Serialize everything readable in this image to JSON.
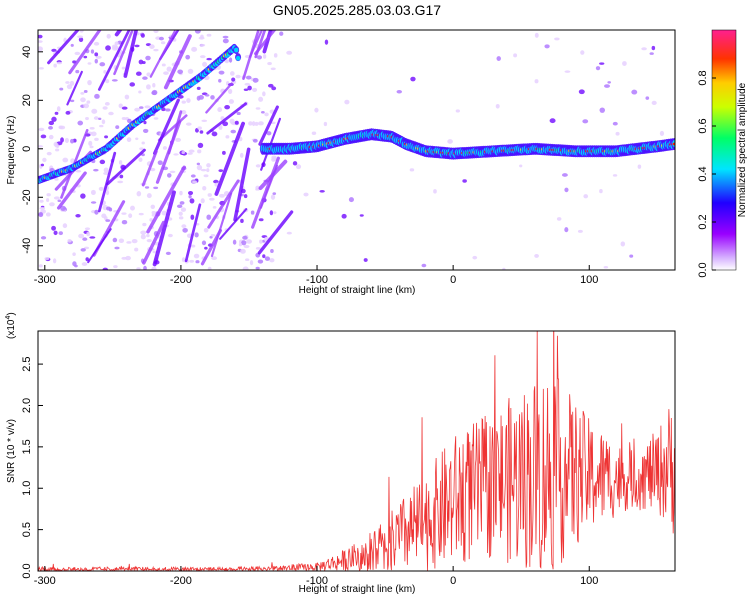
{
  "title": "GN05.2025.285.03.03.G17",
  "chart_data": [
    {
      "type": "heatmap",
      "title": "GN05.2025.285.03.03.G17",
      "xlabel": "Height of straight line (km)",
      "ylabel": "Frequency (Hz)",
      "xlim": [
        -305,
        163
      ],
      "ylim": [
        -50,
        49
      ],
      "xticks": [
        -300,
        -200,
        -100,
        0,
        100
      ],
      "yticks": [
        -40,
        -20,
        0,
        20,
        40
      ],
      "colorbar": {
        "label": "Normalized spectral amplitude",
        "range": [
          0,
          1
        ],
        "ticks": [
          "0.0",
          "0.2",
          "0.4",
          "0.6",
          "0.8"
        ],
        "colors": [
          "#ffffff",
          "#a000ff",
          "#3000ff",
          "#00ffff",
          "#00ff00",
          "#ffff00",
          "#ff0000",
          "#ff1f8f"
        ]
      },
      "ridge_points": [
        {
          "x": -305,
          "y": -13
        },
        {
          "x": -280,
          "y": -8
        },
        {
          "x": -255,
          "y": 0
        },
        {
          "x": -235,
          "y": 10
        },
        {
          "x": -210,
          "y": 20
        },
        {
          "x": -185,
          "y": 30
        },
        {
          "x": -160,
          "y": 42
        },
        {
          "x": -140,
          "y": 0
        },
        {
          "x": -120,
          "y": 0
        },
        {
          "x": -100,
          "y": 1
        },
        {
          "x": -80,
          "y": 4
        },
        {
          "x": -60,
          "y": 6
        },
        {
          "x": -45,
          "y": 5
        },
        {
          "x": -35,
          "y": 2
        },
        {
          "x": -20,
          "y": -1
        },
        {
          "x": 0,
          "y": -2
        },
        {
          "x": 30,
          "y": -1
        },
        {
          "x": 60,
          "y": 0
        },
        {
          "x": 90,
          "y": -1
        },
        {
          "x": 120,
          "y": -1
        },
        {
          "x": 150,
          "y": 1
        },
        {
          "x": 163,
          "y": 2
        }
      ]
    },
    {
      "type": "line",
      "xlabel": "Height of straight line (km)",
      "ylabel": "SNR (10 * v/v)",
      "scale_label": "(x10",
      "scale_exponent": "4",
      "scale_close": ")",
      "xlim": [
        -305,
        163
      ],
      "ylim": [
        0,
        2.9
      ],
      "xticks": [
        -300,
        -200,
        -100,
        0,
        100
      ],
      "yticks": [
        "0.0",
        "0.5",
        "1.0",
        "1.5",
        "2.0",
        "2.5"
      ],
      "series_color": "#ee3333",
      "envelope": [
        {
          "x": -305,
          "mean": 0.02,
          "amp": 0.03
        },
        {
          "x": -150,
          "mean": 0.02,
          "amp": 0.03
        },
        {
          "x": -100,
          "mean": 0.05,
          "amp": 0.05
        },
        {
          "x": -75,
          "mean": 0.15,
          "amp": 0.15
        },
        {
          "x": -50,
          "mean": 0.3,
          "amp": 0.35
        },
        {
          "x": -20,
          "mean": 0.6,
          "amp": 0.6
        },
        {
          "x": 0,
          "mean": 0.85,
          "amp": 0.8
        },
        {
          "x": 30,
          "mean": 1.05,
          "amp": 0.9
        },
        {
          "x": 70,
          "mean": 1.2,
          "amp": 1.3
        },
        {
          "x": 100,
          "mean": 1.15,
          "amp": 0.7
        },
        {
          "x": 130,
          "mean": 1.1,
          "amp": 0.35
        },
        {
          "x": 150,
          "mean": 1.2,
          "amp": 0.5
        },
        {
          "x": 163,
          "mean": 1.3,
          "amp": 0.9
        }
      ]
    }
  ]
}
